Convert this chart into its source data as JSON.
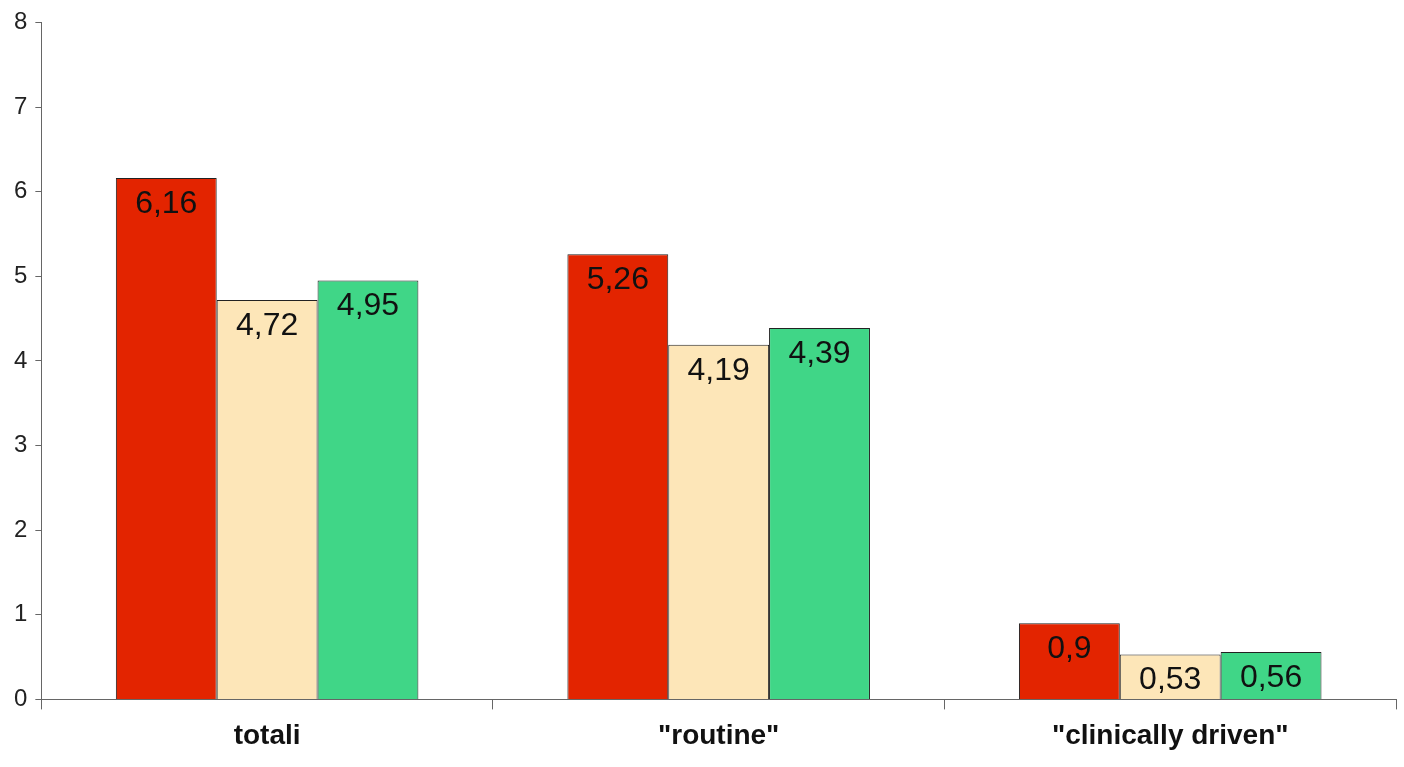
{
  "chart_data": {
    "type": "bar",
    "categories": [
      "totali",
      "\"routine\"",
      "\"clinically driven\""
    ],
    "series": [
      {
        "color": "#e32400",
        "values": [
          6.16,
          5.26,
          0.9
        ],
        "value_labels": [
          "6,16",
          "5,26",
          "0,9"
        ]
      },
      {
        "color": "#fde6b8",
        "values": [
          4.72,
          4.19,
          0.53
        ],
        "value_labels": [
          "4,72",
          "4,19",
          "0,53"
        ]
      },
      {
        "color": "#40d687",
        "values": [
          4.95,
          4.39,
          0.56
        ],
        "value_labels": [
          "4,95",
          "4,39",
          "0,56"
        ]
      }
    ],
    "ylim": [
      0,
      8
    ],
    "yticks": [
      0,
      1,
      2,
      3,
      4,
      5,
      6,
      7,
      8
    ],
    "grid": false,
    "legend": false
  }
}
